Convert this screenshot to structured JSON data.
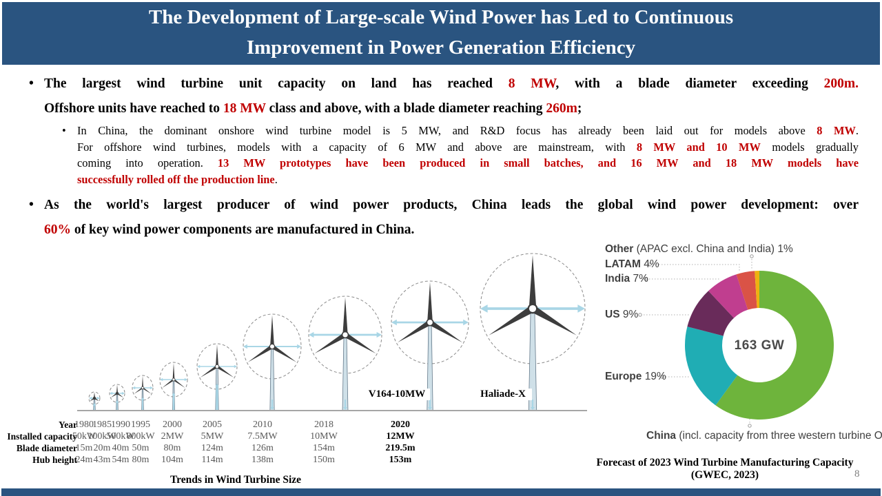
{
  "header": {
    "title_line1": "The Development of Large-scale Wind Power has Led to Continuous",
    "title_line2": "Improvement in Power Generation Efficiency"
  },
  "bullets": [
    {
      "level": 1,
      "lines": [
        [
          {
            "t": "The largest wind turbine unit capacity on land has reached "
          },
          {
            "t": "8 MW",
            "red": true
          },
          {
            "t": ", with a blade diameter exceeding "
          },
          {
            "t": "200m.",
            "red": true
          }
        ],
        [
          {
            "t": "Offshore units have reached to "
          },
          {
            "t": "18 MW",
            "red": true
          },
          {
            "t": " class and above, with a blade diameter reaching "
          },
          {
            "t": "260m",
            "red": true
          },
          {
            "t": ";"
          }
        ]
      ]
    },
    {
      "level": 2,
      "lines": [
        [
          {
            "t": "In China, the dominant onshore wind turbine model is 5 MW, and R&D focus has already been laid out for models above "
          },
          {
            "t": "8 MW",
            "red": true
          },
          {
            "t": "."
          }
        ],
        [
          {
            "t": "For offshore wind turbines, models with a capacity of 6 MW and above are mainstream, with "
          },
          {
            "t": "8 MW and 10 MW",
            "red": true
          },
          {
            "t": " models gradually"
          }
        ],
        [
          {
            "t": "coming into operation. "
          },
          {
            "t": "13 MW prototypes have been produced in small batches, and 16 MW and 18 MW models have",
            "red": true
          }
        ],
        [
          {
            "t": "successfully rolled off the production line",
            "red": true
          },
          {
            "t": "."
          }
        ]
      ]
    },
    {
      "level": 1,
      "lines": [
        [
          {
            "t": "As the world's largest producer of wind power products, China leads the global wind power development: over"
          }
        ],
        [
          {
            "t": "60%",
            "red": true
          },
          {
            "t": " of key wind power components are manufactured in China."
          }
        ]
      ]
    }
  ],
  "captions": {
    "right_line1": "Forecast of 2023 Wind Turbine Manufacturing Capacity",
    "right_line2": "(GWEC, 2023)"
  },
  "footer": {
    "page_number": "8"
  },
  "chart_data": [
    {
      "type": "table",
      "title": "Trends in Wind Turbine Size",
      "row_labels": [
        "Year",
        "Installed capacity",
        "Blade diameter",
        "Hub height"
      ],
      "columns": [
        {
          "year": "1980",
          "capacity": "50kW",
          "blade_diameter": "15m",
          "hub_height": "24m"
        },
        {
          "year": "1985",
          "capacity": "100kW",
          "blade_diameter": "20m",
          "hub_height": "43m"
        },
        {
          "year": "1990",
          "capacity": "500kW",
          "blade_diameter": "40m",
          "hub_height": "54m"
        },
        {
          "year": "1995",
          "capacity": "800kW",
          "blade_diameter": "50m",
          "hub_height": "80m"
        },
        {
          "year": "2000",
          "capacity": "2MW",
          "blade_diameter": "80m",
          "hub_height": "104m"
        },
        {
          "year": "2005",
          "capacity": "5MW",
          "blade_diameter": "124m",
          "hub_height": "114m"
        },
        {
          "year": "2010",
          "capacity": "7.5MW",
          "blade_diameter": "126m",
          "hub_height": "138m"
        },
        {
          "year": "2018",
          "capacity": "10MW",
          "blade_diameter": "154m",
          "hub_height": "150m"
        },
        {
          "year": "2020",
          "capacity": "12MW",
          "blade_diameter": "219.5m",
          "hub_height": "153m",
          "highlight": true
        }
      ],
      "figure_labels": [
        "V164-10MW",
        "Haliade-X"
      ]
    },
    {
      "type": "pie",
      "title": "Forecast of 2023 Wind Turbine Manufacturing Capacity (GWEC, 2023)",
      "center_label": "163 GW",
      "unit": "%",
      "legend_position": "around",
      "slices": [
        {
          "label": "China (incl. capacity from three western turbine OEMs)",
          "value": 60,
          "color": "#6eb43c"
        },
        {
          "label": "Europe",
          "value": 19,
          "color": "#20adb4"
        },
        {
          "label": "US",
          "value": 9,
          "color": "#692b5a"
        },
        {
          "label": "India",
          "value": 7,
          "color": "#c03e8f"
        },
        {
          "label": "LATAM",
          "value": 4,
          "color": "#da5346"
        },
        {
          "label": "Other (APAC excl. China and India)",
          "value": 1,
          "color": "#eeb111"
        }
      ]
    }
  ]
}
